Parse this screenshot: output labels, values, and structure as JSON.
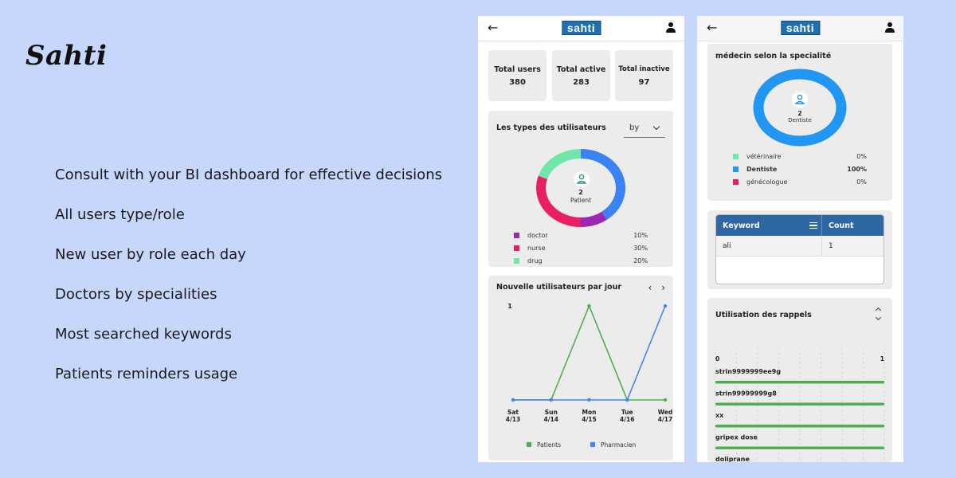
{
  "brand": {
    "title": "Sahti"
  },
  "features": [
    "Consult with your BI dashboard for effective decisions",
    "All users type/role",
    "New user by role each day",
    "Doctors by specialities",
    "Most searched keywords",
    "Patients reminders usage"
  ],
  "app": {
    "logo": "sahti",
    "back_icon": "arrow-left-icon",
    "account_icon": "user-icon"
  },
  "stats": [
    {
      "label": "Total users",
      "value": "380"
    },
    {
      "label": "Total active",
      "value": "283"
    },
    {
      "label": "Total inactive",
      "value": "97"
    }
  ],
  "user_types": {
    "title": "Les types des utilisateurs",
    "filter_label": "by",
    "center_value": "2",
    "center_label": "Patient",
    "segments": [
      {
        "name": "Patient",
        "percent": 40,
        "color": "#3b82f6"
      },
      {
        "name": "doctor",
        "percent": 10,
        "color": "#9c27b0"
      },
      {
        "name": "nurse",
        "percent": 30,
        "color": "#e91e63"
      },
      {
        "name": "drug",
        "percent": 20,
        "color": "#6ee7a8"
      }
    ],
    "legend": [
      {
        "label": "doctor",
        "value": "10%",
        "color": "#9c27b0"
      },
      {
        "label": "nurse",
        "value": "30%",
        "color": "#e91e63"
      },
      {
        "label": "drug",
        "value": "20%",
        "color": "#6ee7a8"
      }
    ]
  },
  "new_users": {
    "title": "Nouvelle utilisateurs par jour",
    "prev_icon": "‹",
    "next_icon": "›",
    "chart_data": {
      "type": "line",
      "categories": [
        [
          "Sat",
          "4/13"
        ],
        [
          "Sun",
          "4/14"
        ],
        [
          "Mon",
          "4/15"
        ],
        [
          "Tue",
          "4/16"
        ],
        [
          "Wed",
          "4/17"
        ]
      ],
      "y_tick_label": "1",
      "ylim": [
        0,
        1
      ],
      "series": [
        {
          "name": "Patients",
          "color": "#4caf50",
          "values": [
            0,
            0,
            1,
            0,
            0
          ]
        },
        {
          "name": "Pharmacien",
          "color": "#4285f4",
          "values": [
            0,
            0,
            0,
            0,
            1
          ]
        }
      ]
    }
  },
  "specialty": {
    "title": "médecin selon la  specialité",
    "center_value": "2",
    "center_label": "Dentiste",
    "ring_color": "#2196f3",
    "legend": [
      {
        "label": "vétérinaire",
        "value": "0%",
        "color": "#6ee7a8",
        "bold": false
      },
      {
        "label": "Dentiste",
        "value": "100%",
        "color": "#2196f3",
        "bold": true
      },
      {
        "label": "génécologue",
        "value": "0%",
        "color": "#e91e63",
        "bold": false
      }
    ]
  },
  "keywords": {
    "col_keyword": "Keyword",
    "col_count": "Count",
    "rows": [
      {
        "keyword": "ali",
        "count": "1"
      }
    ]
  },
  "reminders": {
    "title": "Utilisation des rappels",
    "chart_data": {
      "type": "bar",
      "axis_min_label": "0",
      "axis_max_label": "1",
      "xlim": [
        0,
        1
      ],
      "bar_color": "#4caf50",
      "categories": [
        "strin9999999ee9g",
        "strin99999999g8",
        "xx",
        "gripex dose",
        "doliprane"
      ],
      "values": [
        1,
        1,
        1,
        1,
        1
      ]
    }
  }
}
